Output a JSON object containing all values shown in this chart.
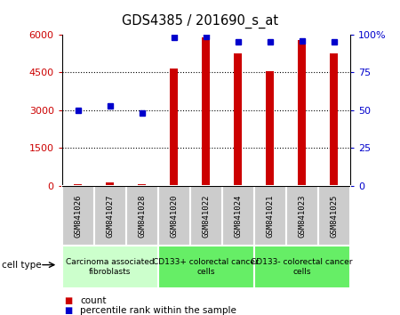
{
  "title": "GDS4385 / 201690_s_at",
  "samples": [
    "GSM841026",
    "GSM841027",
    "GSM841028",
    "GSM841020",
    "GSM841022",
    "GSM841024",
    "GSM841021",
    "GSM841023",
    "GSM841025"
  ],
  "counts": [
    60,
    130,
    55,
    4650,
    5900,
    5250,
    4550,
    5800,
    5250
  ],
  "percentile_ranks": [
    50,
    53,
    48,
    98,
    99,
    95,
    95,
    96,
    95
  ],
  "cell_types": [
    {
      "label": "Carcinoma associated\nfibroblasts",
      "start": 0,
      "end": 3,
      "color": "#ccffcc"
    },
    {
      "label": "CD133+ colorectal cancer\ncells",
      "start": 3,
      "end": 6,
      "color": "#66ee66"
    },
    {
      "label": "CD133- colorectal cancer\ncells",
      "start": 6,
      "end": 9,
      "color": "#66ee66"
    }
  ],
  "ylim_left": [
    0,
    6000
  ],
  "ylim_right": [
    0,
    100
  ],
  "yticks_left": [
    0,
    1500,
    3000,
    4500,
    6000
  ],
  "ytick_labels_left": [
    "0",
    "1500",
    "3000",
    "4500",
    "6000"
  ],
  "yticks_right": [
    0,
    25,
    50,
    75,
    100
  ],
  "ytick_labels_right": [
    "0",
    "25",
    "50",
    "75",
    "100%"
  ],
  "bar_color": "#cc0000",
  "dot_color": "#0000cc",
  "background_color": "#ffffff",
  "tick_bg_color": "#cccccc",
  "fig_width": 4.5,
  "fig_height": 3.54,
  "dpi": 100
}
